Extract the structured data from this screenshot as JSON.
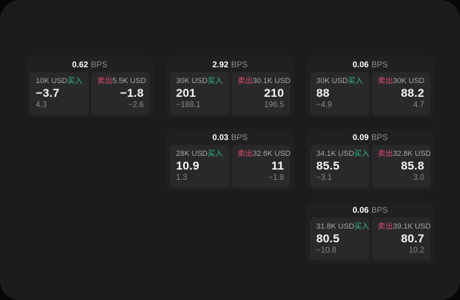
{
  "colors": {
    "buy_green": "#2ebd85",
    "sell_red": "#dd4e6d",
    "window_bg": "#1c1c1e",
    "card_bg": "#202022",
    "panel_bg": "#29292b"
  },
  "labels": {
    "buy": "买入",
    "sell": "卖出"
  },
  "cards": [
    {
      "bps": "0.62",
      "unit": "BPS",
      "buy": {
        "size": "10K USD",
        "side": "买入",
        "price": "−3.7",
        "delta": "4.3"
      },
      "sell": {
        "side": "卖出",
        "size": "5.5K USD",
        "price": "−1.8",
        "delta": "−2.6"
      }
    },
    {
      "bps": "2.92",
      "unit": "BPS",
      "buy": {
        "size": "30K USD",
        "side": "买入",
        "price": "201",
        "delta": "−188.1"
      },
      "sell": {
        "side": "卖出",
        "size": "30.1K USD",
        "price": "210",
        "delta": "196.5"
      }
    },
    {
      "bps": "0.06",
      "unit": "BPS",
      "buy": {
        "size": "30K USD",
        "side": "买入",
        "price": "88",
        "delta": "−4.9"
      },
      "sell": {
        "side": "卖出",
        "size": "30K USD",
        "price": "88.2",
        "delta": "4.7"
      }
    },
    {
      "bps": "0.03",
      "unit": "BPS",
      "buy": {
        "size": "28K USD",
        "side": "买入",
        "price": "10.9",
        "delta": "1.3"
      },
      "sell": {
        "side": "卖出",
        "size": "32.6K USD",
        "price": "11",
        "delta": "−1.8"
      }
    },
    {
      "bps": "0.09",
      "unit": "BPS",
      "buy": {
        "size": "34.1K USD",
        "side": "买入",
        "price": "85.5",
        "delta": "−3.1"
      },
      "sell": {
        "side": "卖出",
        "size": "32.8K USD",
        "price": "85.8",
        "delta": "3.0"
      }
    },
    {
      "bps": "0.06",
      "unit": "BPS",
      "buy": {
        "size": "31.8K USD",
        "side": "买入",
        "price": "80.5",
        "delta": "−10.8"
      },
      "sell": {
        "side": "卖出",
        "size": "39.1K USD",
        "price": "80.7",
        "delta": "10.2"
      }
    }
  ]
}
